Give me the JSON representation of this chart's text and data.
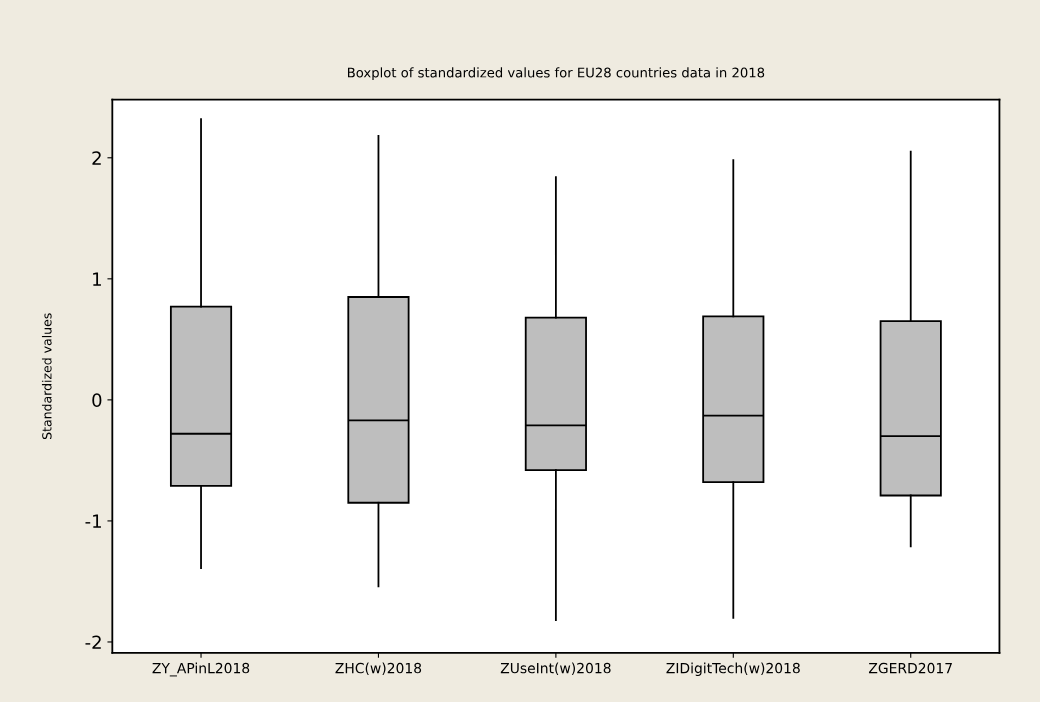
{
  "chart_data": {
    "type": "box",
    "title": "Boxplot of standardized values for EU28 countries data in 2018",
    "ylabel": "Standardized values",
    "categories": [
      "ZY_APinL2018",
      "ZHC(w)2018",
      "ZUseInt(w)2018",
      "ZIDigitTech(w)2018",
      "ZGERD2017"
    ],
    "color": "#bebebe",
    "boxes": [
      {
        "low": -1.39,
        "q1": -0.71,
        "median": -0.28,
        "q3": 0.77,
        "high": 2.32
      },
      {
        "low": -1.54,
        "q1": -0.85,
        "median": -0.17,
        "q3": 0.85,
        "high": 2.18
      },
      {
        "low": -1.82,
        "q1": -0.58,
        "median": -0.21,
        "q3": 0.68,
        "high": 1.84
      },
      {
        "low": -1.8,
        "q1": -0.68,
        "median": -0.13,
        "q3": 0.69,
        "high": 1.98
      },
      {
        "low": -1.21,
        "q1": -0.79,
        "median": -0.3,
        "q3": 0.65,
        "high": 2.05
      }
    ],
    "ylim": [
      -2.09,
      2.48
    ],
    "yticks": [
      -2,
      -1,
      0,
      1,
      2
    ],
    "grid": false
  }
}
